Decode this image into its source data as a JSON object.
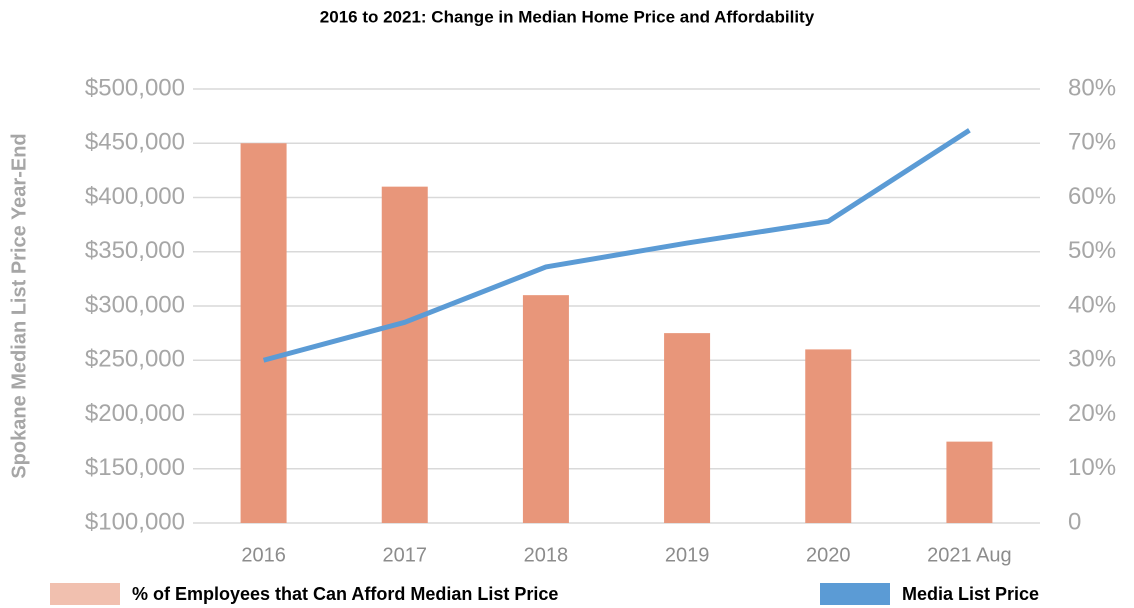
{
  "chart_data": {
    "type": "bar_line",
    "title": "2016 to 2021: Change in Median Home Price and Affordability",
    "y_label": "Spokane Median List Price Year-End",
    "categories": [
      "2016",
      "2017",
      "2018",
      "2019",
      "2020",
      "2021 Aug"
    ],
    "series": [
      {
        "name": "% of Employees that Can Afford Median List Price",
        "type": "bar",
        "axis": "y2",
        "color": "#e8967a",
        "values": [
          70,
          62,
          42,
          35,
          32,
          15
        ]
      },
      {
        "name": "Media List Price",
        "type": "line",
        "color": "#5b9bd5",
        "values": [
          250000,
          285000,
          336000,
          358000,
          378000,
          462000
        ]
      }
    ],
    "ylim": [
      100000,
      500000
    ],
    "yticks": [
      {
        "value": 100000,
        "label": "$100,000"
      },
      {
        "value": 150000,
        "label": "$150,000"
      },
      {
        "value": 200000,
        "label": "$200,000"
      },
      {
        "value": 250000,
        "label": "$250,000"
      },
      {
        "value": 300000,
        "label": "$300,000"
      },
      {
        "value": 350000,
        "label": "$350,000"
      },
      {
        "value": 400000,
        "label": "$400,000"
      },
      {
        "value": 450000,
        "label": "$450,000"
      },
      {
        "value": 500000,
        "label": "$500,000"
      }
    ],
    "y2lim": [
      0,
      80
    ],
    "y2ticks": [
      0,
      {
        "value": 10,
        "label": "10%"
      },
      {
        "value": 20,
        "label": "20%"
      },
      {
        "value": 30,
        "label": "30%"
      },
      {
        "value": 40,
        "label": "40%"
      },
      {
        "value": 50,
        "label": "50%"
      },
      {
        "value": 60,
        "label": "60%"
      },
      {
        "value": 70,
        "label": "70%"
      },
      {
        "value": 80,
        "label": "80%"
      }
    ],
    "grid": true,
    "legend": "bottom"
  }
}
